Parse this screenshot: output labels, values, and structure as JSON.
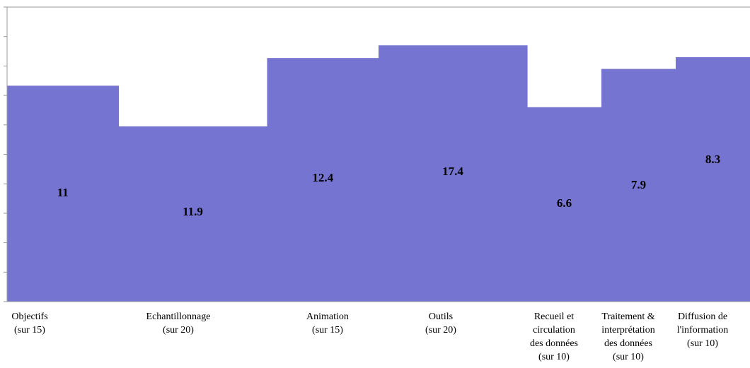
{
  "chart_data": {
    "type": "bar",
    "variable_width": true,
    "categories": [
      [
        "Objectifs",
        "(sur 15)"
      ],
      [
        "Echantillonnage",
        "(sur 20)"
      ],
      [
        "Animation",
        "(sur 15)"
      ],
      [
        "Outils",
        "(sur 20)"
      ],
      [
        "Recueil et",
        "circulation",
        "des données",
        "(sur 10)"
      ],
      [
        "Traitement &",
        "interprétation",
        "des données",
        "(sur 10)"
      ],
      [
        "Diffusion de",
        "l'information",
        "(sur 10)"
      ]
    ],
    "widths": [
      15,
      20,
      15,
      20,
      10,
      10,
      10
    ],
    "values": [
      11,
      11.9,
      12.4,
      17.4,
      6.6,
      7.9,
      8.3
    ],
    "value_labels": [
      "11",
      "11.9",
      "12.4",
      "17.4",
      "6.6",
      "7.9",
      "8.3"
    ],
    "normalized_scores_out_of_10": [
      7.33,
      5.95,
      8.27,
      8.7,
      6.6,
      7.9,
      8.3
    ],
    "ylim": [
      0,
      10
    ],
    "y_ticks": [
      0,
      1,
      2,
      3,
      4,
      5,
      6,
      7,
      8,
      9,
      10
    ],
    "y_tick_labels_shown": false,
    "grid": false,
    "legend": "none",
    "title": "",
    "xlabel": "",
    "ylabel": "",
    "colors": {
      "bar_fill": "#7575D1",
      "axis": "#9a9a9a",
      "text": "#000000",
      "background": "#ffffff"
    }
  }
}
